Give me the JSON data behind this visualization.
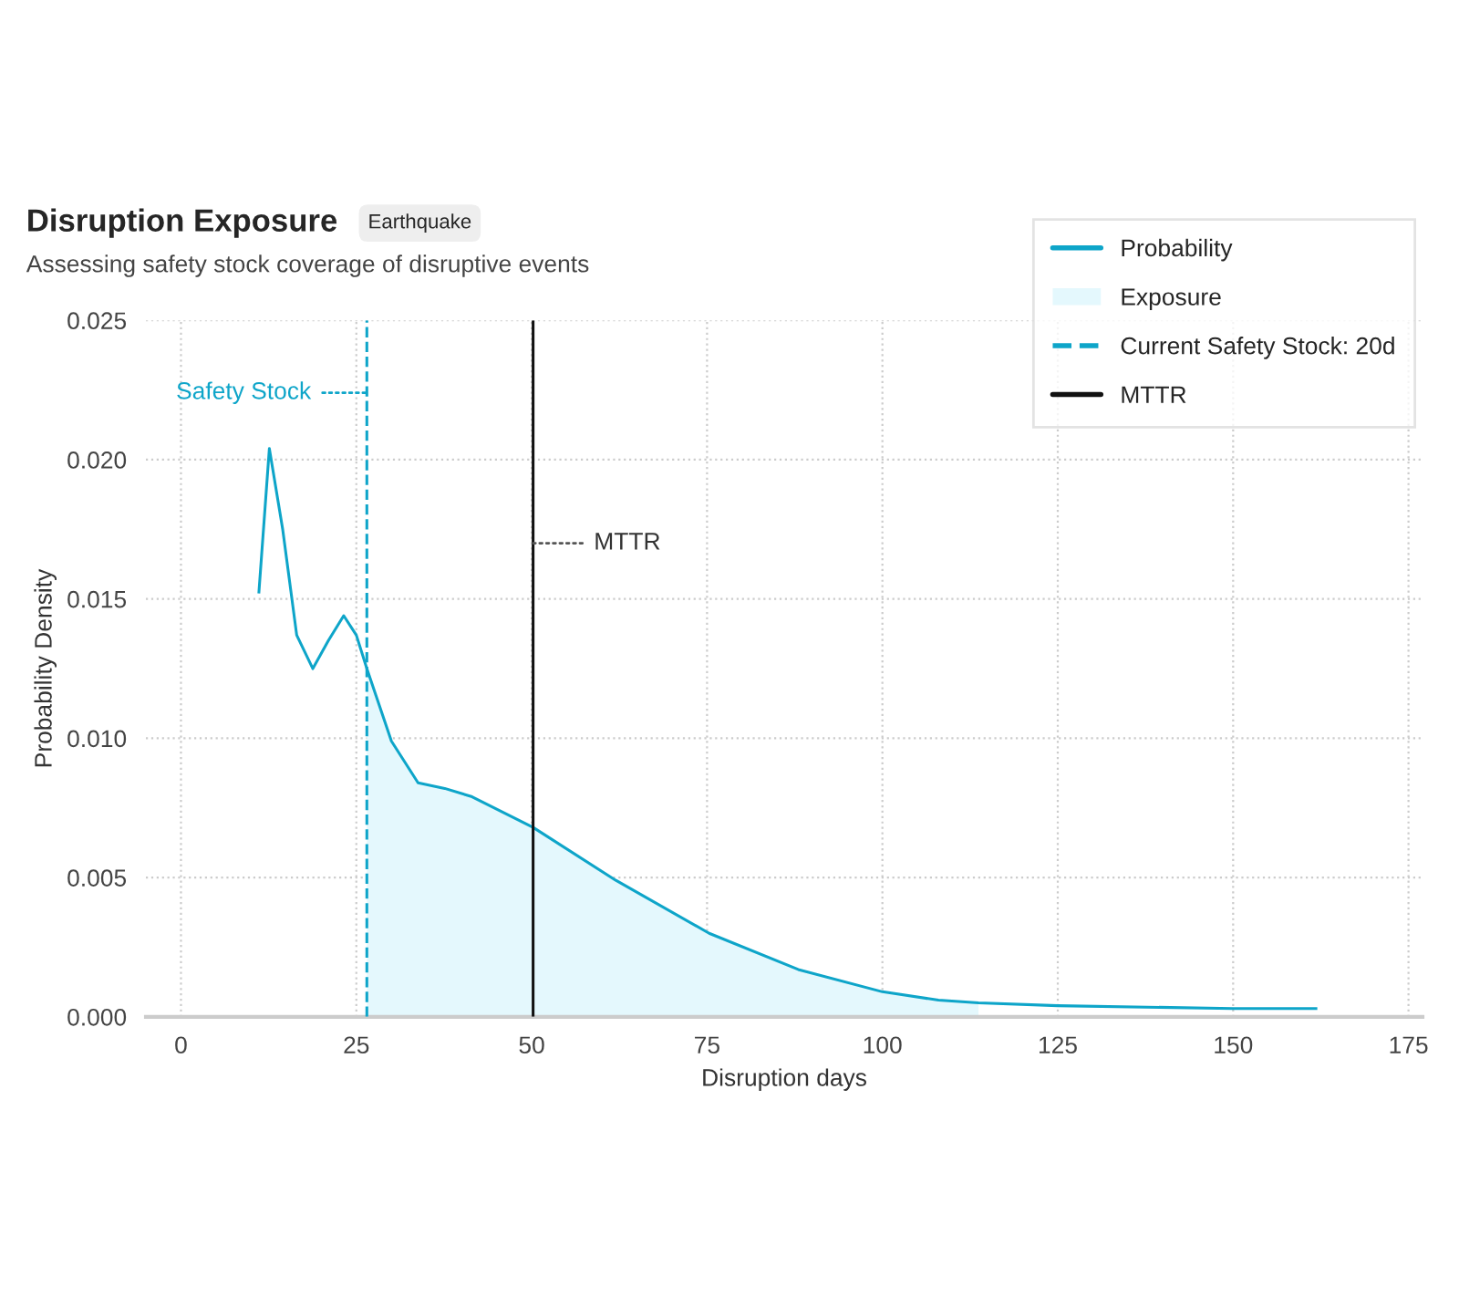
{
  "chart_data": {
    "type": "line",
    "title": "Disruption Exposure",
    "subtitle": "Assessing safety stock coverage of disruptive events",
    "annotations": [
      "Earthquake",
      {
        "text": "Safety Stock",
        "x": 26.5,
        "y": 0.0224
      },
      {
        "text": "MTTR",
        "x": 50.2,
        "y": 0.017
      }
    ],
    "xlabel": "Disruption days",
    "ylabel": "Probability Density",
    "xlim": [
      -5,
      177
    ],
    "ylim": [
      0,
      0.025
    ],
    "xticks": [
      0,
      25,
      50,
      75,
      100,
      125,
      150,
      175
    ],
    "yticks": [
      {
        "value": 0,
        "label": "0.000"
      },
      {
        "value": 0.005,
        "label": "0.005"
      },
      {
        "value": 0.01,
        "label": "0.010"
      },
      {
        "value": 0.015,
        "label": "0.015"
      },
      {
        "value": 0.02,
        "label": "0.020"
      },
      {
        "value": 0.025,
        "label": "0.025"
      }
    ],
    "grid": true,
    "legend": "top right",
    "series": [
      {
        "name": "Probability",
        "color": "#0ea5c9",
        "x": [
          11.1,
          12.6,
          14.5,
          16.5,
          18.8,
          21,
          23.2,
          25,
          26.5,
          30,
          33.8,
          37.6,
          41.5,
          50.2,
          62,
          75.3,
          88,
          100,
          108,
          113.7,
          125,
          150,
          162
        ],
        "values": [
          0.0152,
          0.0204,
          0.0175,
          0.0137,
          0.0125,
          0.0135,
          0.0144,
          0.0137,
          0.0125,
          0.0099,
          0.0084,
          0.0082,
          0.0079,
          0.0068,
          0.0049,
          0.003,
          0.0017,
          0.0009,
          0.0006,
          0.0005,
          0.0004,
          0.0003,
          0.0003
        ]
      },
      {
        "name": "Exposure",
        "type": "area",
        "color": "#e4f8fd",
        "x": [
          26.5,
          30,
          33.8,
          37.6,
          41.5,
          50.2,
          62,
          75.3,
          88,
          100,
          108,
          113.7
        ],
        "values": [
          0.0125,
          0.0099,
          0.0084,
          0.0082,
          0.0079,
          0.0068,
          0.0049,
          0.003,
          0.0017,
          0.0009,
          0.0006,
          0.0005
        ]
      },
      {
        "name": "Current Safety Stock: 20d",
        "color": "#0ea5c9",
        "line_style": "dashed",
        "x": [
          26.5,
          26.5
        ],
        "values": [
          0,
          0.025
        ]
      },
      {
        "name": "MTTR",
        "color": "#111111",
        "line_style": "solid",
        "x": [
          50.2,
          50.2
        ],
        "values": [
          0,
          0.025
        ]
      }
    ]
  }
}
